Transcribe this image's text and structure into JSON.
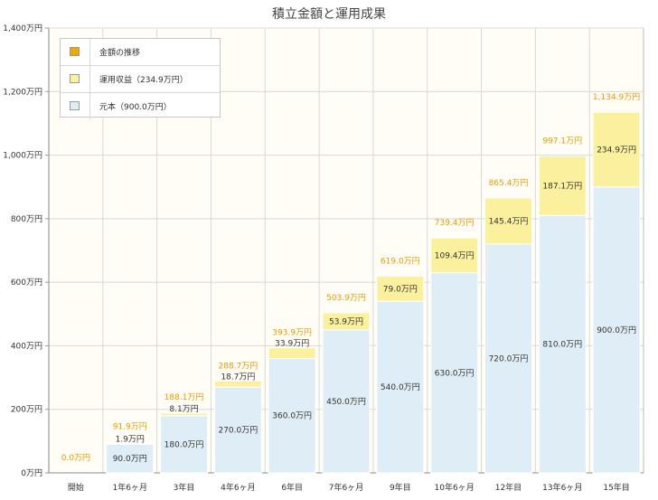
{
  "colors": {
    "principal": "#dfeef6",
    "gain": "#fbf09e",
    "total_swatch": "#f0a800",
    "total_label": "#e89a00",
    "plot_bg": "#fffdf5",
    "grid": "#d8d8d8"
  },
  "legend": [
    {
      "label": "金額の推移",
      "color": "#f0a800"
    },
    {
      "label": "運用収益（234.9万円）",
      "color": "#fbf09e"
    },
    {
      "label": "元本（900.0万円）",
      "color": "#dfeef6"
    }
  ],
  "chart_data": {
    "type": "bar",
    "stacked": true,
    "title": "積立金額と運用成果",
    "categories": [
      "開始",
      "1年6ヶ月",
      "3年目",
      "4年6ヶ月",
      "6年目",
      "7年6ヶ月",
      "9年目",
      "10年6ヶ月",
      "12年目",
      "13年6ヶ月",
      "15年目"
    ],
    "series": [
      {
        "name": "元本（900.0万円）",
        "values": [
          0,
          90.0,
          180.0,
          270.0,
          360.0,
          450.0,
          540.0,
          630.0,
          720.0,
          810.0,
          900.0
        ],
        "labels": [
          "",
          "90.0万円",
          "180.0万円",
          "270.0万円",
          "360.0万円",
          "450.0万円",
          "540.0万円",
          "630.0万円",
          "720.0万円",
          "810.0万円",
          "900.0万円"
        ]
      },
      {
        "name": "運用収益（234.9万円）",
        "values": [
          0,
          1.9,
          8.1,
          18.7,
          33.9,
          53.9,
          79.0,
          109.4,
          145.4,
          187.1,
          234.9
        ],
        "labels": [
          "",
          "1.9万円",
          "8.1万円",
          "18.7万円",
          "33.9万円",
          "53.9万円",
          "79.0万円",
          "109.4万円",
          "145.4万円",
          "187.1万円",
          "234.9万円"
        ]
      }
    ],
    "totals": [
      0.0,
      91.9,
      188.1,
      288.7,
      393.9,
      503.9,
      619.0,
      739.4,
      865.4,
      997.1,
      1134.9
    ],
    "total_labels": [
      "0.0万円",
      "91.9万円",
      "188.1万円",
      "288.7万円",
      "393.9万円",
      "503.9万円",
      "619.0万円",
      "739.4万円",
      "865.4万円",
      "997.1万円",
      "1,134.9万円"
    ],
    "ylim": [
      0,
      1400
    ],
    "yticks": [
      0,
      200,
      400,
      600,
      800,
      1000,
      1200,
      1400
    ],
    "ytick_labels": [
      "0万円",
      "200万円",
      "400万円",
      "600万円",
      "800万円",
      "1,000万円",
      "1,200万円",
      "1,400万円"
    ],
    "grid": true,
    "legend_position": "top-left"
  }
}
